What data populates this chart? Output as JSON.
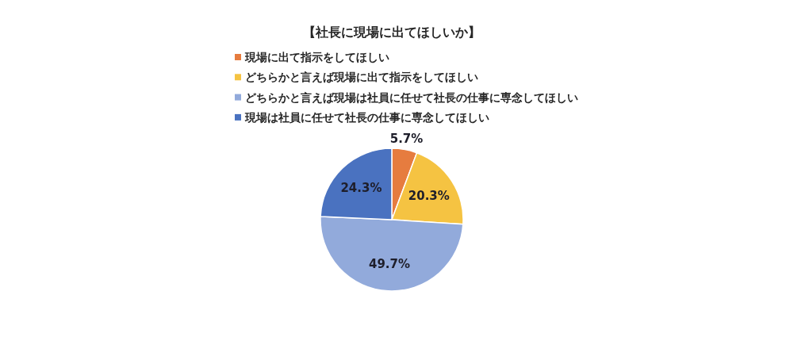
{
  "chart_data": {
    "type": "pie",
    "title": "【社長に現場に出てほしいか】",
    "categories": [
      "現場に出て指示をしてほしい",
      "どちらかと言えば現場に出て指示をしてほしい",
      "どちらかと言えば現場は社員に任せて社長の仕事に専念してほしい",
      "現場は社員に任せて社長の仕事に専念してほしい"
    ],
    "values": [
      5.7,
      20.3,
      49.7,
      24.3
    ],
    "colors": [
      "#e67c3f",
      "#f5c342",
      "#92aadb",
      "#4a72c0"
    ],
    "value_labels": [
      "5.7%",
      "20.3%",
      "49.7%",
      "24.3%"
    ],
    "legend": "top"
  }
}
